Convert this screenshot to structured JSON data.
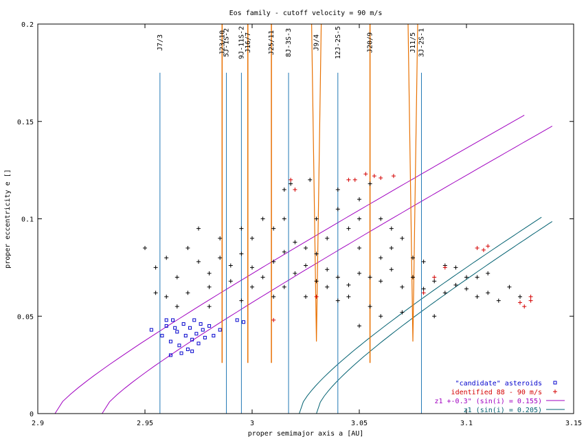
{
  "chart_data": {
    "type": "scatter",
    "title": "Eos family - cutoff velocity = 90 m/s",
    "xlabel": "proper semimajor axis a [AU]",
    "ylabel": "proper eccentricity e []",
    "xlim": [
      2.9,
      3.15
    ],
    "ylim": [
      0,
      0.2
    ],
    "xticks": [
      "2.9",
      "2.95",
      "3",
      "3.05",
      "3.1",
      "3.15"
    ],
    "yticks": [
      "0",
      "0.05",
      "0.1",
      "0.15",
      "0.2"
    ],
    "legend_position": "bottom-right",
    "colors": {
      "family": "#000000",
      "candidate": "#0000cc",
      "identified": "#d40000",
      "z1_wide": "#a000c0",
      "z1": "#006070",
      "resonance_line": "#1f77b4",
      "resonance_band": "#e87000",
      "grid_frame": "#000000"
    },
    "resonances": [
      {
        "label": "J7/3",
        "a": 2.957,
        "kind": "line"
      },
      {
        "label": "J23/10",
        "a": 2.986,
        "kind": "band"
      },
      {
        "label": "5J-1S-2",
        "a": 2.988,
        "kind": "line"
      },
      {
        "label": "9J-11S-2",
        "a": 2.995,
        "kind": "line"
      },
      {
        "label": "J16/7",
        "a": 2.998,
        "kind": "band"
      },
      {
        "label": "J25/11",
        "a": 3.009,
        "kind": "band"
      },
      {
        "label": "8J-3S-3",
        "a": 3.017,
        "kind": "line"
      },
      {
        "label": "J9/4",
        "a": 3.03,
        "kind": "wedge"
      },
      {
        "label": "12J-2S-5",
        "a": 3.04,
        "kind": "line"
      },
      {
        "label": "J20/9",
        "a": 3.055,
        "kind": "band"
      },
      {
        "label": "J11/5",
        "a": 3.075,
        "kind": "wedge"
      },
      {
        "label": "3J-2S-1",
        "a": 3.079,
        "kind": "line"
      }
    ],
    "series": [
      {
        "name": "",
        "kind": "family",
        "points": [
          [
            2.955,
            0.075
          ],
          [
            2.96,
            0.08
          ],
          [
            2.965,
            0.07
          ],
          [
            2.97,
            0.085
          ],
          [
            2.975,
            0.078
          ],
          [
            2.98,
            0.072
          ],
          [
            2.985,
            0.08
          ],
          [
            2.99,
            0.076
          ],
          [
            2.995,
            0.082
          ],
          [
            3.0,
            0.075
          ],
          [
            3.005,
            0.07
          ],
          [
            3.01,
            0.078
          ],
          [
            3.015,
            0.083
          ],
          [
            3.02,
            0.072
          ],
          [
            3.025,
            0.076
          ],
          [
            3.03,
            0.068
          ],
          [
            3.035,
            0.074
          ],
          [
            3.04,
            0.07
          ],
          [
            3.045,
            0.066
          ],
          [
            3.05,
            0.072
          ],
          [
            3.055,
            0.07
          ],
          [
            3.06,
            0.068
          ],
          [
            3.065,
            0.074
          ],
          [
            3.07,
            0.065
          ],
          [
            3.075,
            0.07
          ],
          [
            3.08,
            0.064
          ],
          [
            3.085,
            0.068
          ],
          [
            3.09,
            0.062
          ],
          [
            3.095,
            0.066
          ],
          [
            3.1,
            0.064
          ],
          [
            3.105,
            0.06
          ],
          [
            3.11,
            0.062
          ],
          [
            3.115,
            0.058
          ],
          [
            2.96,
            0.06
          ],
          [
            2.97,
            0.062
          ],
          [
            2.98,
            0.065
          ],
          [
            2.99,
            0.068
          ],
          [
            3.0,
            0.09
          ],
          [
            3.01,
            0.095
          ],
          [
            3.02,
            0.088
          ],
          [
            3.03,
            0.1
          ],
          [
            3.04,
            0.105
          ],
          [
            3.05,
            0.11
          ],
          [
            3.055,
            0.118
          ],
          [
            3.06,
            0.1
          ],
          [
            3.065,
            0.095
          ],
          [
            3.07,
            0.09
          ],
          [
            3.045,
            0.095
          ],
          [
            3.035,
            0.09
          ],
          [
            2.975,
            0.095
          ],
          [
            2.985,
            0.09
          ],
          [
            2.995,
            0.095
          ],
          [
            3.005,
            0.1
          ],
          [
            3.015,
            0.1
          ],
          [
            3.025,
            0.085
          ],
          [
            2.965,
            0.055
          ],
          [
            2.98,
            0.055
          ],
          [
            2.995,
            0.058
          ],
          [
            3.01,
            0.06
          ],
          [
            3.025,
            0.06
          ],
          [
            3.04,
            0.058
          ],
          [
            3.055,
            0.055
          ],
          [
            3.07,
            0.052
          ],
          [
            3.085,
            0.05
          ],
          [
            3.05,
            0.045
          ],
          [
            3.06,
            0.05
          ],
          [
            3.045,
            0.06
          ],
          [
            3.1,
            0.07
          ],
          [
            3.11,
            0.072
          ],
          [
            3.12,
            0.065
          ],
          [
            3.125,
            0.06
          ],
          [
            3.03,
            0.082
          ],
          [
            3.06,
            0.08
          ],
          [
            3.08,
            0.078
          ],
          [
            3.09,
            0.076
          ],
          [
            2.95,
            0.085
          ],
          [
            2.955,
            0.062
          ],
          [
            3.0,
            0.065
          ],
          [
            3.015,
            0.065
          ],
          [
            3.035,
            0.065
          ],
          [
            3.05,
            0.085
          ],
          [
            3.065,
            0.085
          ],
          [
            3.075,
            0.08
          ],
          [
            3.095,
            0.075
          ],
          [
            3.105,
            0.07
          ],
          [
            3.018,
            0.118
          ],
          [
            3.015,
            0.115
          ],
          [
            3.027,
            0.12
          ],
          [
            3.04,
            0.115
          ],
          [
            3.05,
            0.1
          ]
        ]
      },
      {
        "name": "\"candidate\" asteroids",
        "kind": "candidate",
        "points": [
          [
            2.953,
            0.043
          ],
          [
            2.958,
            0.04
          ],
          [
            2.96,
            0.045
          ],
          [
            2.962,
            0.037
          ],
          [
            2.963,
            0.048
          ],
          [
            2.965,
            0.042
          ],
          [
            2.966,
            0.035
          ],
          [
            2.968,
            0.046
          ],
          [
            2.969,
            0.04
          ],
          [
            2.97,
            0.033
          ],
          [
            2.971,
            0.044
          ],
          [
            2.972,
            0.038
          ],
          [
            2.973,
            0.048
          ],
          [
            2.974,
            0.041
          ],
          [
            2.975,
            0.036
          ],
          [
            2.976,
            0.046
          ],
          [
            2.977,
            0.043
          ],
          [
            2.978,
            0.039
          ],
          [
            2.96,
            0.048
          ],
          [
            2.967,
            0.031
          ],
          [
            2.98,
            0.045
          ],
          [
            2.982,
            0.04
          ],
          [
            2.964,
            0.044
          ],
          [
            2.972,
            0.032
          ],
          [
            2.993,
            0.048
          ],
          [
            2.996,
            0.047
          ],
          [
            2.985,
            0.043
          ],
          [
            2.962,
            0.03
          ]
        ]
      },
      {
        "name": "identified 88 - 90 m/s",
        "kind": "identified",
        "points": [
          [
            3.053,
            0.123
          ],
          [
            3.057,
            0.122
          ],
          [
            3.06,
            0.121
          ],
          [
            3.048,
            0.12
          ],
          [
            3.045,
            0.12
          ],
          [
            3.08,
            0.062
          ],
          [
            3.085,
            0.07
          ],
          [
            3.09,
            0.075
          ],
          [
            3.105,
            0.085
          ],
          [
            3.108,
            0.084
          ],
          [
            3.11,
            0.086
          ],
          [
            3.13,
            0.06
          ],
          [
            3.127,
            0.055
          ],
          [
            3.13,
            0.058
          ],
          [
            3.125,
            0.057
          ],
          [
            3.01,
            0.048
          ],
          [
            3.018,
            0.12
          ],
          [
            3.02,
            0.115
          ],
          [
            3.03,
            0.06
          ],
          [
            3.066,
            0.122
          ]
        ]
      },
      {
        "name": "z1 +-0.3\" (sin(i) = 0.155)",
        "kind": "z1_wide"
      },
      {
        "name": "z1 (sin(i) = 0.205)",
        "kind": "z1"
      }
    ]
  }
}
